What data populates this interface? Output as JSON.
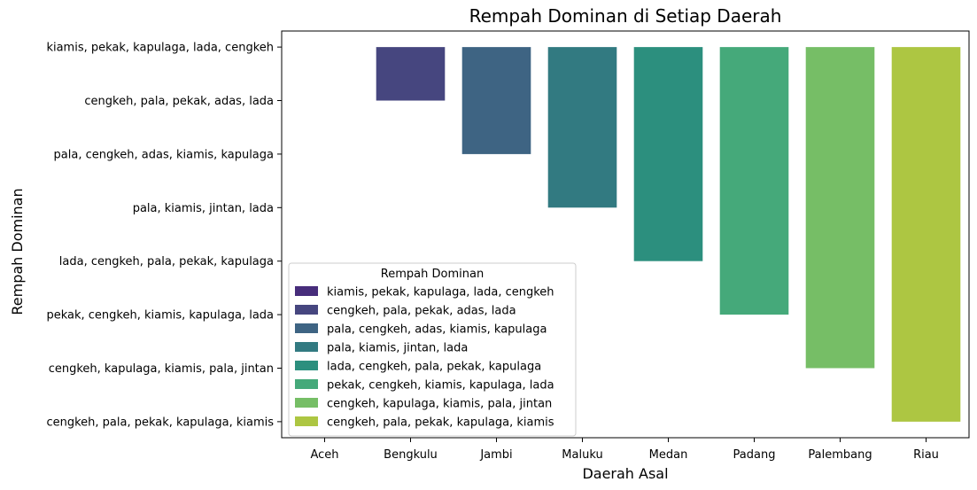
{
  "chart_data": {
    "type": "bar",
    "title": "Rempah Dominan di Setiap Daerah",
    "xlabel": "Daerah Asal",
    "ylabel": "Rempah Dominan",
    "categories": [
      "Aceh",
      "Bengkulu",
      "Jambi",
      "Maluku",
      "Medan",
      "Padang",
      "Palembang",
      "Riau"
    ],
    "y_categories": [
      "kiamis, pekak, kapulaga, lada, cengkeh",
      "cengkeh, pala, pekak, adas, lada",
      "pala, cengkeh, adas, kiamis, kapulaga",
      "pala, kiamis, jintan, lada",
      "lada, cengkeh, pala, pekak, kapulaga",
      "pekak, cengkeh, kiamis, kapulaga, lada",
      "cengkeh, kapulaga, kiamis, pala, jintan",
      "cengkeh, pala, pekak, kapulaga, kiamis"
    ],
    "values": [
      0,
      1,
      2,
      3,
      4,
      5,
      6,
      7
    ],
    "colors": [
      "#472d7b",
      "#46467f",
      "#3e6483",
      "#327a81",
      "#2c8f7e",
      "#45a97a",
      "#76be66",
      "#adc642"
    ],
    "grid": false,
    "legend": {
      "title": "Rempah Dominan",
      "placement": "lower-left",
      "entries": [
        "kiamis, pekak, kapulaga, lada, cengkeh",
        "cengkeh, pala, pekak, adas, lada",
        "pala, cengkeh, adas, kiamis, kapulaga",
        "pala, kiamis, jintan, lada",
        "lada, cengkeh, pala, pekak, kapulaga",
        "pekak, cengkeh, kiamis, kapulaga, lada",
        "cengkeh, kapulaga, kiamis, pala, jintan",
        "cengkeh, pala, pekak, kapulaga, kiamis"
      ]
    }
  }
}
